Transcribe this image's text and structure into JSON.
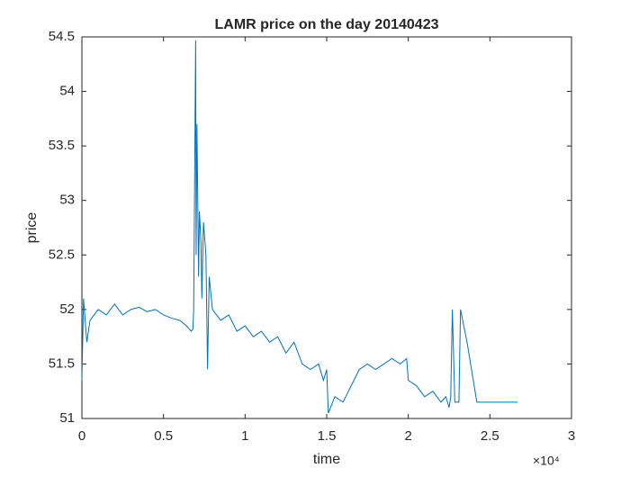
{
  "chart_data": {
    "type": "line",
    "title": "LAMR price on the day 20140423",
    "x_label": "time",
    "y_label": "price",
    "x_multiplier": "×10⁴",
    "x": [
      0,
      0.01,
      0.03,
      0.05,
      0.1,
      0.15,
      0.2,
      0.25,
      0.3,
      0.35,
      0.4,
      0.45,
      0.5,
      0.55,
      0.6,
      0.64,
      0.67,
      0.68,
      0.685,
      0.697,
      0.7,
      0.705,
      0.715,
      0.72,
      0.73,
      0.735,
      0.745,
      0.76,
      0.77,
      0.78,
      0.8,
      0.85,
      0.9,
      0.95,
      1.0,
      1.05,
      1.1,
      1.15,
      1.2,
      1.25,
      1.3,
      1.35,
      1.4,
      1.45,
      1.48,
      1.5,
      1.51,
      1.55,
      1.6,
      1.65,
      1.7,
      1.75,
      1.8,
      1.85,
      1.9,
      1.95,
      1.99,
      2.0,
      2.05,
      2.1,
      2.15,
      2.2,
      2.23,
      2.25,
      2.26,
      2.27,
      2.285,
      2.31,
      2.32,
      2.36,
      2.42,
      2.67
    ],
    "series": [
      {
        "name": "price",
        "color": "#0072bd",
        "values": [
          51.35,
          52.1,
          51.7,
          51.9,
          52.0,
          51.95,
          52.05,
          51.95,
          52.0,
          52.02,
          51.98,
          52.0,
          51.95,
          51.92,
          51.9,
          51.85,
          51.8,
          51.82,
          52.0,
          54.47,
          52.5,
          53.7,
          52.3,
          52.9,
          52.6,
          52.1,
          52.8,
          52.5,
          51.45,
          52.3,
          52.0,
          51.9,
          51.95,
          51.8,
          51.85,
          51.75,
          51.8,
          51.7,
          51.75,
          51.6,
          51.7,
          51.5,
          51.45,
          51.5,
          51.35,
          51.45,
          51.05,
          51.2,
          51.15,
          51.3,
          51.45,
          51.5,
          51.45,
          51.5,
          51.55,
          51.5,
          51.55,
          51.35,
          51.3,
          51.2,
          51.25,
          51.15,
          51.2,
          51.1,
          51.2,
          52.0,
          51.15,
          51.15,
          52.0,
          51.7,
          51.15,
          51.15
        ]
      }
    ],
    "xlim": [
      0,
      3
    ],
    "xticks": [
      0,
      0.5,
      1,
      1.5,
      2,
      2.5,
      3
    ],
    "ylim": [
      51,
      54.5
    ],
    "yticks": [
      51,
      51.5,
      52,
      52.5,
      53,
      53.5,
      54,
      54.5
    ]
  }
}
